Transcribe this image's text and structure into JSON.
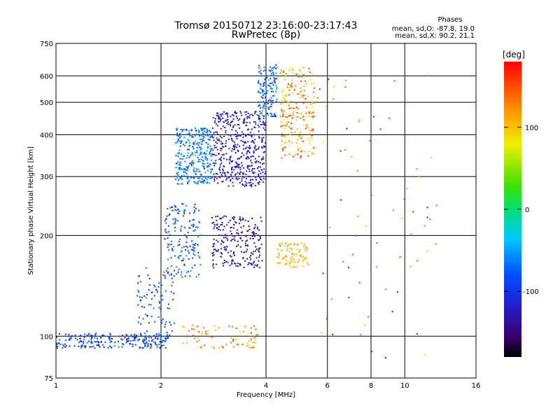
{
  "chart_data": {
    "type": "scatter",
    "title": "Tromsø 20150712 23:16:00-23:17:43",
    "subtitle": "RwPretec (8p)",
    "legend_title": "Phases",
    "legend_lines": [
      "mean, sd,O: -87.8, 19.0",
      "mean, sd,X:  90.2, 21.1"
    ],
    "xlabel": "Frequency [MHz]",
    "ylabel": "Stationary phase Virtual Height [km]",
    "xscale": "log",
    "yscale": "log",
    "xlim": [
      1,
      16
    ],
    "ylim": [
      75,
      750
    ],
    "x_ticks": [
      1,
      2,
      4,
      6,
      8,
      10,
      16
    ],
    "y_ticks": [
      75,
      100,
      200,
      300,
      400,
      500,
      600,
      750
    ],
    "grid": true,
    "colorbar": {
      "unit": "[deg]",
      "range": [
        -180,
        180
      ],
      "ticks": [
        100,
        0,
        -100
      ],
      "colormap": "rainbow"
    },
    "point_clusters": [
      {
        "x_range": [
          1.0,
          2.1
        ],
        "y_range": [
          92,
          102
        ],
        "phase_range": [
          -120,
          -60
        ],
        "count": 240
      },
      {
        "x_range": [
          1.7,
          2.2
        ],
        "y_range": [
          100,
          160
        ],
        "phase_range": [
          -110,
          -60
        ],
        "count": 90
      },
      {
        "x_range": [
          2.05,
          2.6
        ],
        "y_range": [
          150,
          250
        ],
        "phase_range": [
          -110,
          -50
        ],
        "count": 170
      },
      {
        "x_range": [
          2.2,
          2.8
        ],
        "y_range": [
          285,
          420
        ],
        "phase_range": [
          -90,
          -40
        ],
        "count": 320
      },
      {
        "x_range": [
          2.8,
          4.0
        ],
        "y_range": [
          280,
          470
        ],
        "phase_range": [
          -140,
          -100
        ],
        "count": 480
      },
      {
        "x_range": [
          3.8,
          4.3
        ],
        "y_range": [
          450,
          650
        ],
        "phase_range": [
          -110,
          -40
        ],
        "count": 140
      },
      {
        "x_range": [
          2.8,
          3.9
        ],
        "y_range": [
          160,
          230
        ],
        "phase_range": [
          -155,
          -110
        ],
        "count": 230
      },
      {
        "x_range": [
          4.4,
          5.5
        ],
        "y_range": [
          340,
          640
        ],
        "phase_range": [
          70,
          170
        ],
        "count": 220
      },
      {
        "x_range": [
          4.3,
          5.3
        ],
        "y_range": [
          160,
          190
        ],
        "phase_range": [
          90,
          120
        ],
        "count": 90
      },
      {
        "x_range": [
          2.3,
          3.8
        ],
        "y_range": [
          92,
          108
        ],
        "phase_range": [
          90,
          160
        ],
        "count": 80
      },
      {
        "x_range": [
          5.5,
          12.5
        ],
        "y_range": [
          85,
          640
        ],
        "phase_range": [
          -140,
          160
        ],
        "count": 70
      }
    ]
  }
}
